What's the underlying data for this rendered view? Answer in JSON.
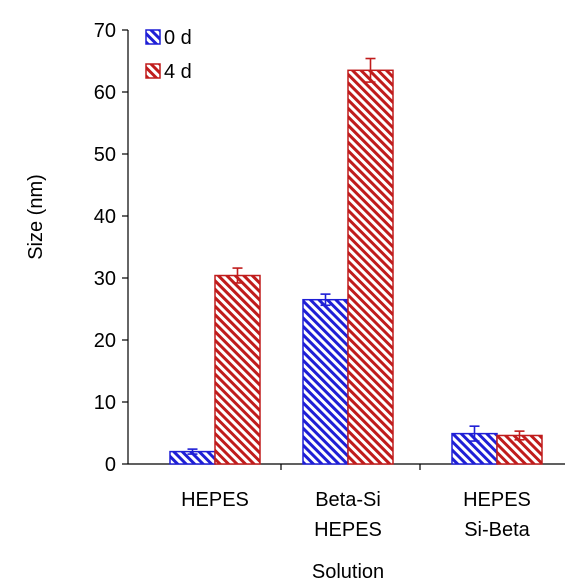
{
  "chart_data": {
    "type": "bar",
    "title": "",
    "xlabel": "Solution",
    "ylabel": "Size (nm)",
    "ylim": [
      0,
      70
    ],
    "yticks": [
      0,
      10,
      20,
      30,
      40,
      50,
      60,
      70
    ],
    "legend_position": "top-left",
    "categories": [
      [
        "HEPES"
      ],
      [
        "Beta-Si",
        "HEPES"
      ],
      [
        "HEPES",
        "Si-Beta"
      ]
    ],
    "series": [
      {
        "name": "0 d",
        "color": "#1f1fd6",
        "values": [
          2.0,
          26.5,
          4.9
        ],
        "errors": [
          0.4,
          0.9,
          1.2
        ]
      },
      {
        "name": "4 d",
        "color": "#c01c1c",
        "values": [
          30.4,
          63.5,
          4.6
        ],
        "errors": [
          1.2,
          1.9,
          0.7
        ]
      }
    ]
  }
}
